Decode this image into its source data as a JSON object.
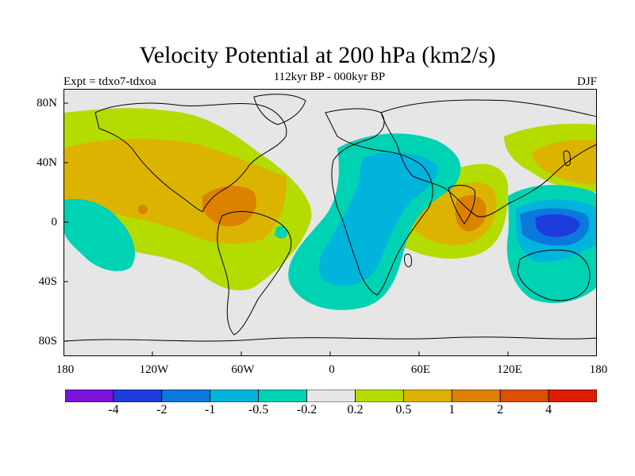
{
  "title": "Velocity Potential at 200 hPa (km2/s)",
  "subtitle": "112kyr BP - 000kyr BP",
  "experiment": "Expt = tdxo7-tdxoa",
  "season": "DJF",
  "axes": {
    "lon_labels": [
      "180",
      "120W",
      "60W",
      "0",
      "60E",
      "120E",
      "180"
    ],
    "lat_labels": [
      "80N",
      "40N",
      "0",
      "40S",
      "80S"
    ]
  },
  "colorbar": {
    "colors": [
      "#7a14dc",
      "#1e3cdc",
      "#0a78dc",
      "#00b4dc",
      "#00d2b4",
      "#e6e6e6",
      "#b4dc00",
      "#dcb400",
      "#dc8200",
      "#dc5000",
      "#dc1e00"
    ],
    "labels": [
      "-4",
      "-2",
      "-1",
      "-0.5",
      "-0.2",
      "0.2",
      "0.5",
      "1",
      "2",
      "4"
    ]
  },
  "map_colors": {
    "neutral": "#e6e6e6",
    "pos_weak": "#b4dc00",
    "pos_mid": "#dcb400",
    "pos_strong": "#dc8200",
    "neg_weak": "#00d2b4",
    "neg_mid": "#00b4dc",
    "neg_strong": "#0a78dc",
    "neg_max": "#1e3cdc",
    "coast": "#000000"
  }
}
